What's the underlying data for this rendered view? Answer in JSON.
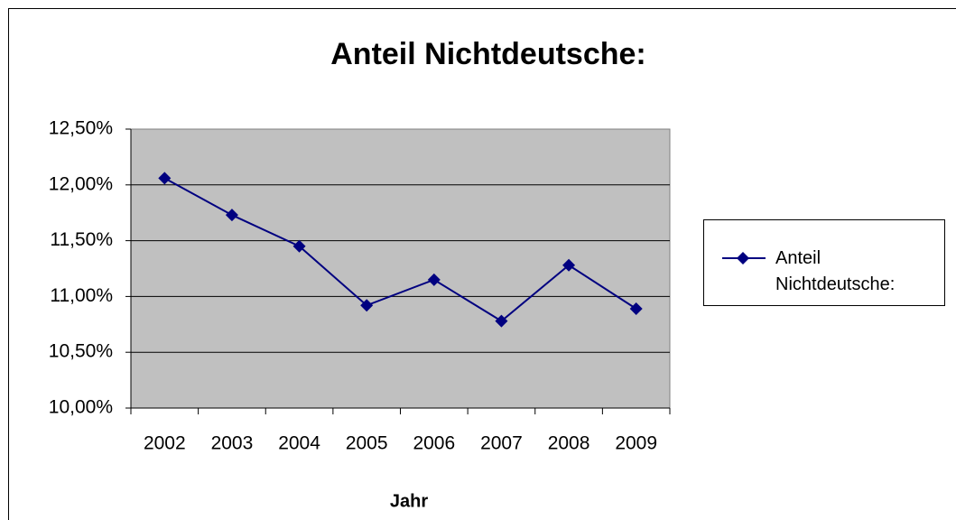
{
  "chart_data": {
    "type": "line",
    "title": "Anteil Nichtdeutsche:",
    "xlabel": "Jahr",
    "categories": [
      "2002",
      "2003",
      "2004",
      "2005",
      "2006",
      "2007",
      "2008",
      "2009"
    ],
    "series": [
      {
        "name": "Anteil Nichtdeutsche:",
        "color": "#000080",
        "values": [
          12.06,
          11.73,
          11.45,
          10.92,
          11.15,
          10.78,
          11.28,
          10.89
        ]
      }
    ],
    "ylim": [
      10,
      12.5
    ],
    "yticks": [
      {
        "value": 10,
        "label": "10,00%"
      },
      {
        "value": 10.5,
        "label": "10,50%"
      },
      {
        "value": 11,
        "label": "11,00%"
      },
      {
        "value": 11.5,
        "label": "11,50%"
      },
      {
        "value": 12,
        "label": "12,00%"
      },
      {
        "value": 12.5,
        "label": "12,50%"
      }
    ],
    "grid": true,
    "legend": "right"
  }
}
